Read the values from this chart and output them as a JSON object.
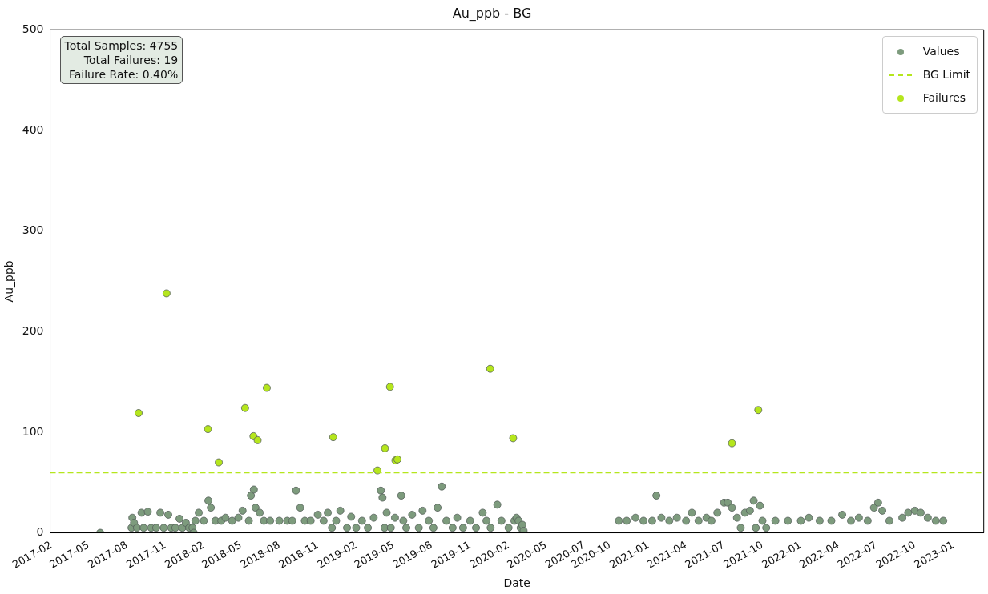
{
  "chart_data": {
    "type": "scatter",
    "title": "Au_ppb - BG",
    "xlabel": "Date",
    "ylabel": "Au_ppb",
    "xlim": [
      "2017-01-29",
      "2023-03-15"
    ],
    "ylim": [
      0,
      500
    ],
    "yticks": [
      0,
      100,
      200,
      300,
      400,
      500
    ],
    "xticks": [
      "2017-02",
      "2017-05",
      "2017-08",
      "2017-11",
      "2018-02",
      "2018-05",
      "2018-08",
      "2018-11",
      "2019-02",
      "2019-05",
      "2019-08",
      "2019-11",
      "2020-02",
      "2020-05",
      {
        "value": "2020-07-31",
        "label": "2020-07"
      },
      "2020-10",
      "2021-01",
      "2021-04",
      "2021-07",
      "2021-10",
      "2022-01",
      "2022-04",
      "2022-07",
      "2022-10",
      "2023-01"
    ],
    "grid": false,
    "legend": "top right",
    "marker": "circle",
    "annotations": [
      "Total Samples: 4755",
      "Total Failures: 19",
      "Failure Rate: 0.40%"
    ],
    "ref_lines": [
      {
        "axis": "y",
        "value": 60,
        "label": "BG Limit",
        "color": "#b5e61d",
        "line_style": "dashed"
      }
    ],
    "series": [
      {
        "name": "Values",
        "color": "#7d9b7d",
        "x": [
          "2017-05-29",
          "2017-08-12",
          "2017-08-14",
          "2017-08-18",
          "2017-08-25",
          "2017-09-05",
          "2017-09-10",
          "2017-09-20",
          "2017-09-28",
          "2017-10-10",
          "2017-10-20",
          "2017-10-28",
          "2017-11-08",
          "2017-11-15",
          "2017-11-25",
          "2017-12-05",
          "2017-12-12",
          "2017-12-20",
          "2017-12-28",
          "2018-01-05",
          "2018-01-08",
          "2018-01-12",
          "2018-01-20",
          "2018-02-01",
          "2018-02-12",
          "2018-02-18",
          "2018-03-01",
          "2018-03-15",
          "2018-03-25",
          "2018-04-10",
          "2018-04-25",
          "2018-05-05",
          "2018-05-20",
          "2018-05-25",
          "2018-06-01",
          "2018-06-05",
          "2018-06-15",
          "2018-06-25",
          "2018-07-10",
          "2018-08-01",
          "2018-08-20",
          "2018-09-01",
          "2018-09-10",
          "2018-09-20",
          "2018-10-01",
          "2018-10-15",
          "2018-11-01",
          "2018-11-15",
          "2018-11-25",
          "2018-12-05",
          "2018-12-15",
          "2018-12-25",
          "2019-01-10",
          "2019-01-20",
          "2019-02-01",
          "2019-02-15",
          "2019-03-01",
          "2019-03-15",
          "2019-04-01",
          "2019-04-05",
          "2019-04-10",
          "2019-04-15",
          "2019-04-25",
          "2019-05-05",
          "2019-05-20",
          "2019-05-25",
          "2019-06-01",
          "2019-06-15",
          "2019-07-01",
          "2019-07-10",
          "2019-07-25",
          "2019-08-05",
          "2019-08-15",
          "2019-08-25",
          "2019-09-05",
          "2019-09-20",
          "2019-10-01",
          "2019-10-15",
          "2019-11-01",
          "2019-11-15",
          "2019-12-01",
          "2019-12-10",
          "2019-12-20",
          "2020-01-05",
          "2020-01-15",
          "2020-02-01",
          "2020-02-15",
          "2020-02-20",
          "2020-02-25",
          "2020-03-01",
          "2020-03-05",
          "2020-03-08",
          "2020-10-22",
          "2020-11-10",
          "2020-12-01",
          "2020-12-20",
          "2021-01-10",
          "2021-01-20",
          "2021-02-01",
          "2021-02-20",
          "2021-03-10",
          "2021-04-01",
          "2021-04-15",
          "2021-05-01",
          "2021-05-20",
          "2021-06-01",
          "2021-06-15",
          "2021-07-01",
          "2021-07-10",
          "2021-07-20",
          "2021-08-01",
          "2021-08-10",
          "2021-08-20",
          "2021-09-01",
          "2021-09-10",
          "2021-09-15",
          "2021-09-25",
          "2021-10-01",
          "2021-10-10",
          "2021-11-01",
          "2021-12-01",
          "2022-01-01",
          "2022-01-20",
          "2022-02-15",
          "2022-03-15",
          "2022-04-10",
          "2022-05-01",
          "2022-05-20",
          "2022-06-10",
          "2022-06-25",
          "2022-07-05",
          "2022-07-15",
          "2022-08-01",
          "2022-09-01",
          "2022-09-15",
          "2022-10-01",
          "2022-10-15",
          "2022-11-01",
          "2022-11-20",
          "2022-12-08"
        ],
        "values": [
          0,
          5,
          15,
          10,
          5,
          20,
          5,
          21,
          5,
          5,
          20,
          5,
          18,
          5,
          5,
          14,
          5,
          10,
          5,
          5,
          0,
          12,
          20,
          12,
          32,
          25,
          12,
          12,
          15,
          12,
          15,
          22,
          12,
          37,
          43,
          25,
          20,
          12,
          12,
          12,
          12,
          12,
          42,
          25,
          12,
          12,
          18,
          12,
          20,
          5,
          12,
          22,
          5,
          16,
          5,
          12,
          5,
          15,
          42,
          35,
          5,
          20,
          5,
          15,
          37,
          12,
          5,
          18,
          5,
          22,
          12,
          5,
          25,
          46,
          12,
          5,
          15,
          5,
          12,
          5,
          20,
          12,
          5,
          28,
          12,
          5,
          12,
          15,
          12,
          5,
          8,
          2,
          12,
          12,
          15,
          12,
          12,
          37,
          15,
          12,
          15,
          12,
          20,
          12,
          15,
          12,
          20,
          30,
          30,
          25,
          15,
          5,
          20,
          22,
          32,
          5,
          27,
          12,
          5,
          12,
          12,
          12,
          15,
          12,
          12,
          18,
          12,
          15,
          12,
          25,
          30,
          22,
          12,
          15,
          20,
          22,
          20,
          15,
          12,
          12
        ]
      },
      {
        "name": "Failures",
        "color": "#b5e61d",
        "x": [
          "2017-08-29",
          "2017-11-04",
          "2018-02-11",
          "2018-03-09",
          "2018-05-11",
          "2018-05-31",
          "2018-06-10",
          "2018-07-02",
          "2018-12-08",
          "2019-03-24",
          "2019-04-11",
          "2019-04-23",
          "2019-05-06",
          "2019-05-11",
          "2019-12-19",
          "2020-02-12",
          "2021-07-20",
          "2021-09-21"
        ],
        "values": [
          119,
          238,
          103,
          70,
          124,
          96,
          92,
          144,
          95,
          62,
          84,
          145,
          72,
          73,
          163,
          94,
          89,
          122
        ]
      }
    ]
  }
}
